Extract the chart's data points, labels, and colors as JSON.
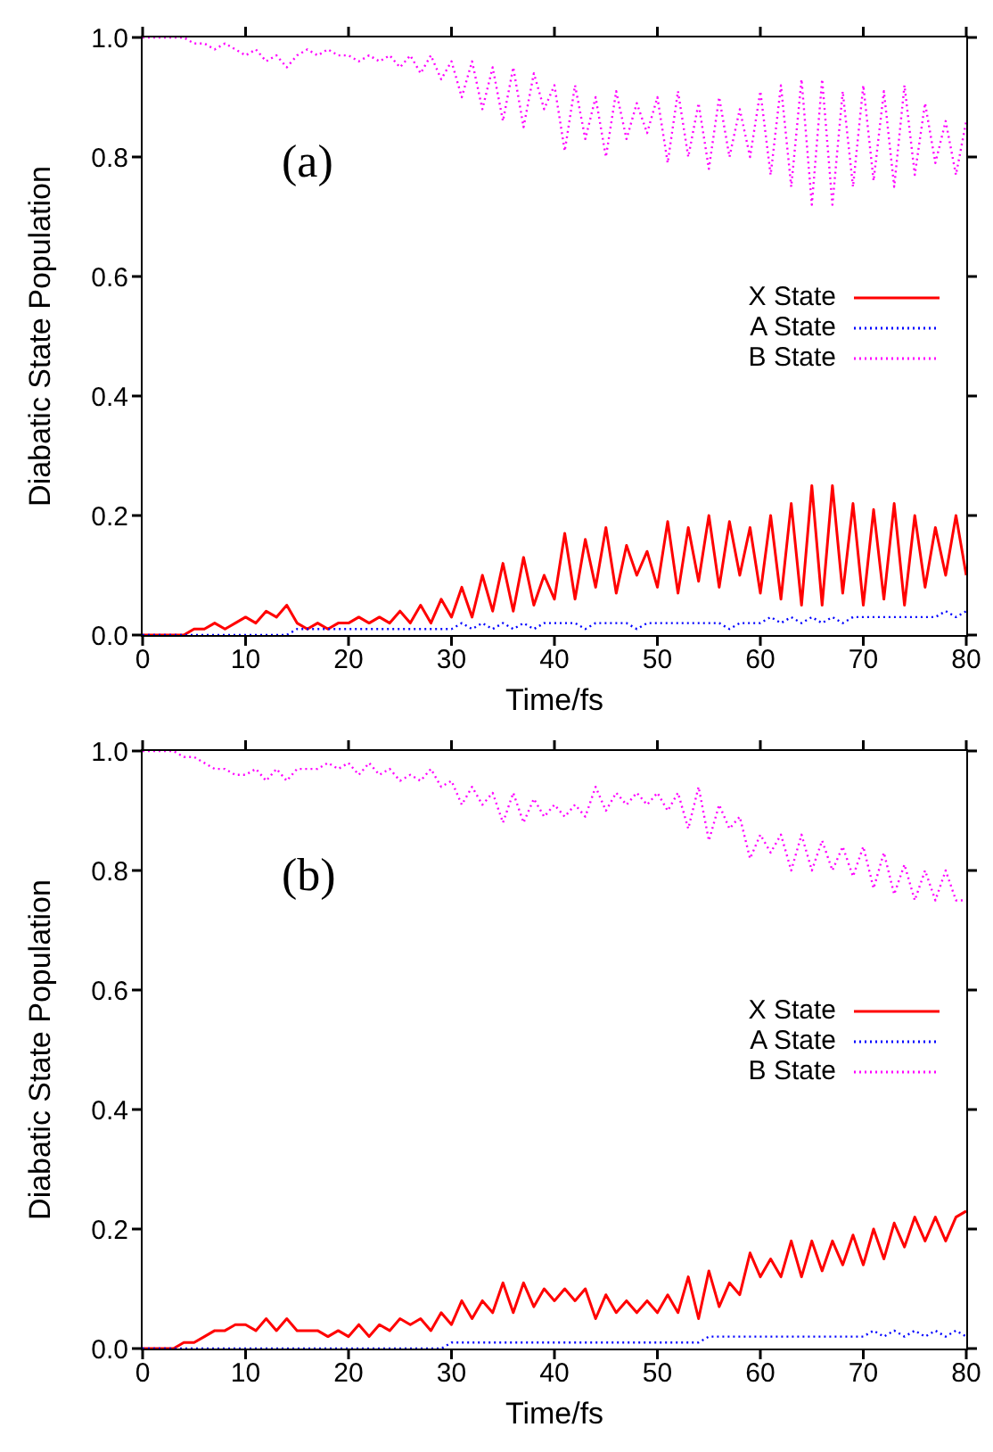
{
  "chart_data": [
    {
      "type": "line",
      "xlabel": "Time/fs",
      "ylabel": "Diabatic State Population",
      "annotations": [
        "(a)"
      ],
      "legend": "right",
      "xlim": [
        0,
        80
      ],
      "xticks": [
        0,
        10,
        20,
        30,
        40,
        50,
        60,
        70,
        80
      ],
      "ylim": [
        0,
        1
      ],
      "yticks": [
        {
          "value": 0,
          "label": "0.0"
        },
        {
          "value": 0.2,
          "label": "0.2"
        },
        {
          "value": 0.4,
          "label": "0.4"
        },
        {
          "value": 0.6,
          "label": "0.6"
        },
        {
          "value": 0.8,
          "label": "0.8"
        },
        {
          "value": 1,
          "label": "1.0"
        }
      ],
      "x": [
        0,
        1,
        2,
        3,
        4,
        5,
        6,
        7,
        8,
        9,
        10,
        11,
        12,
        13,
        14,
        15,
        16,
        17,
        18,
        19,
        20,
        21,
        22,
        23,
        24,
        25,
        26,
        27,
        28,
        29,
        30,
        31,
        32,
        33,
        34,
        35,
        36,
        37,
        38,
        39,
        40,
        41,
        42,
        43,
        44,
        45,
        46,
        47,
        48,
        49,
        50,
        51,
        52,
        53,
        54,
        55,
        56,
        57,
        58,
        59,
        60,
        61,
        62,
        63,
        64,
        65,
        66,
        67,
        68,
        69,
        70,
        71,
        72,
        73,
        74,
        75,
        76,
        77,
        78,
        79,
        80
      ],
      "series": [
        {
          "name": "X State",
          "color": "#ff0000",
          "line_style": "solid",
          "values": [
            0,
            0,
            0,
            0,
            0,
            0.01,
            0.01,
            0.02,
            0.01,
            0.02,
            0.03,
            0.02,
            0.04,
            0.03,
            0.05,
            0.02,
            0.01,
            0.02,
            0.01,
            0.02,
            0.02,
            0.03,
            0.02,
            0.03,
            0.02,
            0.04,
            0.02,
            0.05,
            0.02,
            0.06,
            0.03,
            0.08,
            0.03,
            0.1,
            0.04,
            0.12,
            0.04,
            0.13,
            0.05,
            0.1,
            0.06,
            0.17,
            0.06,
            0.16,
            0.08,
            0.18,
            0.07,
            0.15,
            0.1,
            0.14,
            0.08,
            0.19,
            0.07,
            0.18,
            0.09,
            0.2,
            0.08,
            0.19,
            0.1,
            0.18,
            0.07,
            0.2,
            0.06,
            0.22,
            0.05,
            0.25,
            0.05,
            0.25,
            0.07,
            0.22,
            0.05,
            0.21,
            0.06,
            0.22,
            0.05,
            0.2,
            0.08,
            0.18,
            0.1,
            0.2,
            0.1
          ]
        },
        {
          "name": "A State",
          "color": "#0000ff",
          "line_style": "dotted",
          "values": [
            0,
            0,
            0,
            0,
            0,
            0,
            0,
            0,
            0,
            0,
            0,
            0,
            0,
            0,
            0,
            0.01,
            0.01,
            0.01,
            0.01,
            0.01,
            0.01,
            0.01,
            0.01,
            0.01,
            0.01,
            0.01,
            0.01,
            0.01,
            0.01,
            0.01,
            0.01,
            0.02,
            0.01,
            0.02,
            0.01,
            0.02,
            0.01,
            0.02,
            0.01,
            0.02,
            0.02,
            0.02,
            0.02,
            0.01,
            0.02,
            0.02,
            0.02,
            0.02,
            0.01,
            0.02,
            0.02,
            0.02,
            0.02,
            0.02,
            0.02,
            0.02,
            0.02,
            0.01,
            0.02,
            0.02,
            0.02,
            0.03,
            0.02,
            0.03,
            0.02,
            0.03,
            0.02,
            0.03,
            0.02,
            0.03,
            0.03,
            0.03,
            0.03,
            0.03,
            0.03,
            0.03,
            0.03,
            0.03,
            0.04,
            0.03,
            0.04
          ]
        },
        {
          "name": "B State",
          "color": "#ff00ff",
          "line_style": "dotted",
          "values": [
            1,
            1,
            1,
            1,
            1,
            0.99,
            0.99,
            0.98,
            0.99,
            0.98,
            0.97,
            0.98,
            0.96,
            0.97,
            0.95,
            0.97,
            0.98,
            0.97,
            0.98,
            0.97,
            0.97,
            0.96,
            0.97,
            0.96,
            0.97,
            0.95,
            0.97,
            0.94,
            0.97,
            0.93,
            0.96,
            0.9,
            0.96,
            0.88,
            0.95,
            0.86,
            0.95,
            0.85,
            0.94,
            0.88,
            0.92,
            0.81,
            0.92,
            0.83,
            0.9,
            0.8,
            0.91,
            0.83,
            0.89,
            0.84,
            0.9,
            0.79,
            0.91,
            0.8,
            0.89,
            0.78,
            0.9,
            0.8,
            0.88,
            0.8,
            0.91,
            0.77,
            0.92,
            0.75,
            0.93,
            0.72,
            0.93,
            0.72,
            0.91,
            0.75,
            0.92,
            0.76,
            0.91,
            0.75,
            0.92,
            0.77,
            0.89,
            0.79,
            0.86,
            0.77,
            0.86
          ]
        }
      ]
    },
    {
      "type": "line",
      "xlabel": "Time/fs",
      "ylabel": "Diabatic State Population",
      "annotations": [
        "(b)"
      ],
      "legend": "right",
      "xlim": [
        0,
        80
      ],
      "xticks": [
        0,
        10,
        20,
        30,
        40,
        50,
        60,
        70,
        80
      ],
      "ylim": [
        0,
        1
      ],
      "yticks": [
        {
          "value": 0,
          "label": "0.0"
        },
        {
          "value": 0.2,
          "label": "0.2"
        },
        {
          "value": 0.4,
          "label": "0.4"
        },
        {
          "value": 0.6,
          "label": "0.6"
        },
        {
          "value": 0.8,
          "label": "0.8"
        },
        {
          "value": 1,
          "label": "1.0"
        }
      ],
      "x": [
        0,
        1,
        2,
        3,
        4,
        5,
        6,
        7,
        8,
        9,
        10,
        11,
        12,
        13,
        14,
        15,
        16,
        17,
        18,
        19,
        20,
        21,
        22,
        23,
        24,
        25,
        26,
        27,
        28,
        29,
        30,
        31,
        32,
        33,
        34,
        35,
        36,
        37,
        38,
        39,
        40,
        41,
        42,
        43,
        44,
        45,
        46,
        47,
        48,
        49,
        50,
        51,
        52,
        53,
        54,
        55,
        56,
        57,
        58,
        59,
        60,
        61,
        62,
        63,
        64,
        65,
        66,
        67,
        68,
        69,
        70,
        71,
        72,
        73,
        74,
        75,
        76,
        77,
        78,
        79,
        80
      ],
      "series": [
        {
          "name": "X State",
          "color": "#ff0000",
          "line_style": "solid",
          "values": [
            0,
            0,
            0,
            0,
            0.01,
            0.01,
            0.02,
            0.03,
            0.03,
            0.04,
            0.04,
            0.03,
            0.05,
            0.03,
            0.05,
            0.03,
            0.03,
            0.03,
            0.02,
            0.03,
            0.02,
            0.04,
            0.02,
            0.04,
            0.03,
            0.05,
            0.04,
            0.05,
            0.03,
            0.06,
            0.04,
            0.08,
            0.05,
            0.08,
            0.06,
            0.11,
            0.06,
            0.11,
            0.07,
            0.1,
            0.08,
            0.1,
            0.08,
            0.1,
            0.05,
            0.09,
            0.06,
            0.08,
            0.06,
            0.08,
            0.06,
            0.09,
            0.06,
            0.12,
            0.05,
            0.13,
            0.07,
            0.11,
            0.09,
            0.16,
            0.12,
            0.15,
            0.12,
            0.18,
            0.12,
            0.18,
            0.13,
            0.18,
            0.14,
            0.19,
            0.14,
            0.2,
            0.15,
            0.21,
            0.17,
            0.22,
            0.18,
            0.22,
            0.18,
            0.22,
            0.23
          ]
        },
        {
          "name": "A State",
          "color": "#0000ff",
          "line_style": "dotted",
          "values": [
            0,
            0,
            0,
            0,
            0,
            0,
            0,
            0,
            0,
            0,
            0,
            0,
            0,
            0,
            0,
            0,
            0,
            0,
            0,
            0,
            0,
            0,
            0,
            0,
            0,
            0,
            0,
            0,
            0,
            0,
            0.01,
            0.01,
            0.01,
            0.01,
            0.01,
            0.01,
            0.01,
            0.01,
            0.01,
            0.01,
            0.01,
            0.01,
            0.01,
            0.01,
            0.01,
            0.01,
            0.01,
            0.01,
            0.01,
            0.01,
            0.01,
            0.01,
            0.01,
            0.01,
            0.01,
            0.02,
            0.02,
            0.02,
            0.02,
            0.02,
            0.02,
            0.02,
            0.02,
            0.02,
            0.02,
            0.02,
            0.02,
            0.02,
            0.02,
            0.02,
            0.02,
            0.03,
            0.02,
            0.03,
            0.02,
            0.03,
            0.02,
            0.03,
            0.02,
            0.03,
            0.02
          ]
        },
        {
          "name": "B State",
          "color": "#ff00ff",
          "line_style": "dotted",
          "values": [
            1,
            1,
            1,
            1,
            0.99,
            0.99,
            0.98,
            0.97,
            0.97,
            0.96,
            0.96,
            0.97,
            0.95,
            0.97,
            0.95,
            0.97,
            0.97,
            0.97,
            0.98,
            0.97,
            0.98,
            0.96,
            0.98,
            0.96,
            0.97,
            0.95,
            0.96,
            0.95,
            0.97,
            0.94,
            0.95,
            0.91,
            0.94,
            0.91,
            0.93,
            0.88,
            0.93,
            0.88,
            0.92,
            0.89,
            0.91,
            0.89,
            0.91,
            0.89,
            0.94,
            0.9,
            0.93,
            0.91,
            0.93,
            0.91,
            0.93,
            0.9,
            0.93,
            0.87,
            0.94,
            0.85,
            0.91,
            0.87,
            0.89,
            0.82,
            0.86,
            0.83,
            0.86,
            0.8,
            0.86,
            0.8,
            0.85,
            0.8,
            0.84,
            0.79,
            0.84,
            0.77,
            0.83,
            0.76,
            0.81,
            0.75,
            0.8,
            0.75,
            0.8,
            0.75,
            0.75
          ]
        }
      ]
    }
  ]
}
